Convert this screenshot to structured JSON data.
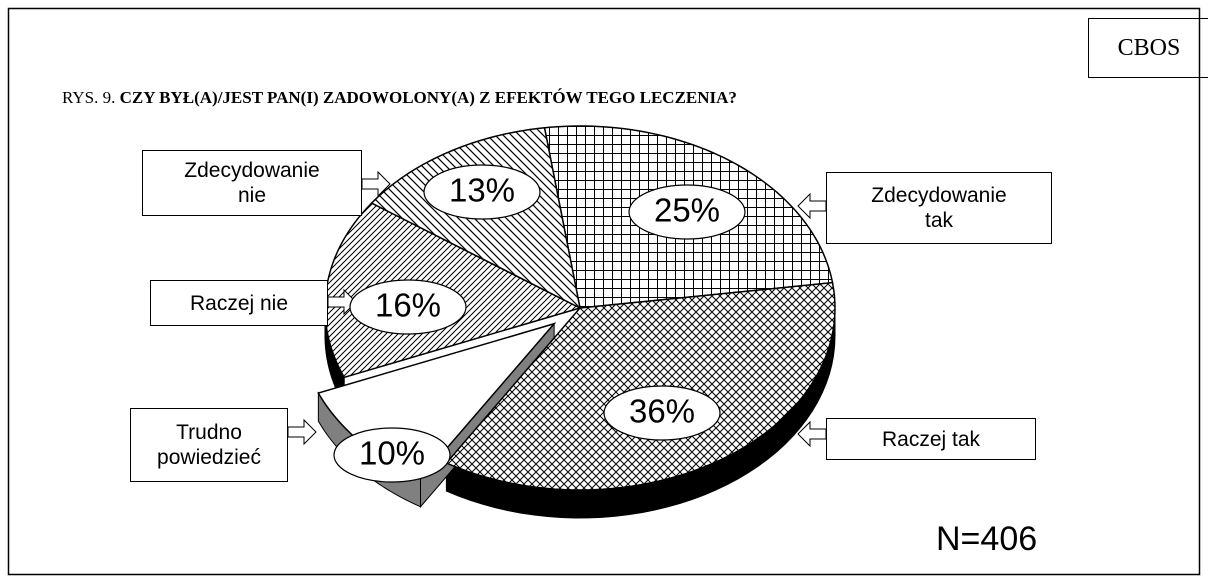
{
  "chart_data": {
    "type": "pie",
    "figure_label": "RYS. 9.",
    "title": "CZY BYŁ(A)/JEST PAN(I) ZADOWOLONY(A) Z EFEKTÓW TEGO LECZENIA?",
    "source": "CBOS",
    "note": "N=406",
    "categories": [
      "Zdecydowanie\ntak",
      "Raczej tak",
      "Trudno\npowiedzieć",
      "Raczej nie",
      "Zdecydowanie\nnie"
    ],
    "values": [
      25,
      36,
      10,
      16,
      13
    ],
    "value_labels": [
      "25%",
      "36%",
      "10%",
      "16%",
      "13%"
    ]
  }
}
